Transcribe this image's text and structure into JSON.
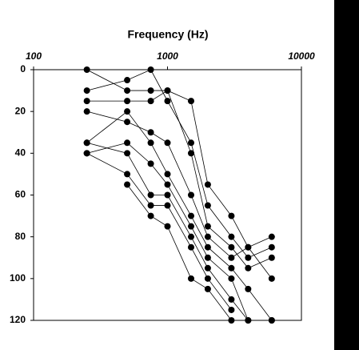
{
  "chart_data": {
    "type": "line",
    "title": "Frequency (Hz)",
    "x": [
      250,
      500,
      750,
      1000,
      1500,
      2000,
      3000,
      4000,
      6000
    ],
    "xlog": true,
    "xlim": [
      100,
      10000
    ],
    "xticks": [
      100,
      1000,
      10000
    ],
    "ylim": [
      0,
      120
    ],
    "yticks": [
      0,
      20,
      40,
      60,
      80,
      100,
      120
    ],
    "yinverted": true,
    "grid": false,
    "color": "#000000",
    "series": [
      {
        "values": [
          0,
          10,
          10,
          10,
          15,
          55,
          70,
          85,
          80
        ]
      },
      {
        "values": [
          10,
          5,
          0,
          15,
          35,
          65,
          80,
          90,
          85
        ]
      },
      {
        "values": [
          15,
          15,
          15,
          10,
          40,
          75,
          85,
          95,
          90
        ]
      },
      {
        "values": [
          20,
          25,
          30,
          35,
          60,
          80,
          90,
          85,
          100
        ]
      },
      {
        "values": [
          35,
          20,
          35,
          50,
          70,
          85,
          95,
          105,
          120
        ]
      },
      {
        "values": [
          40,
          35,
          45,
          55,
          75,
          90,
          100,
          120,
          120
        ]
      },
      {
        "values": [
          35,
          40,
          60,
          60,
          80,
          95,
          110,
          120,
          null
        ]
      },
      {
        "values": [
          40,
          50,
          65,
          65,
          85,
          100,
          115,
          null,
          null
        ]
      },
      {
        "values": [
          null,
          55,
          70,
          75,
          100,
          105,
          120,
          null,
          null
        ]
      }
    ]
  }
}
